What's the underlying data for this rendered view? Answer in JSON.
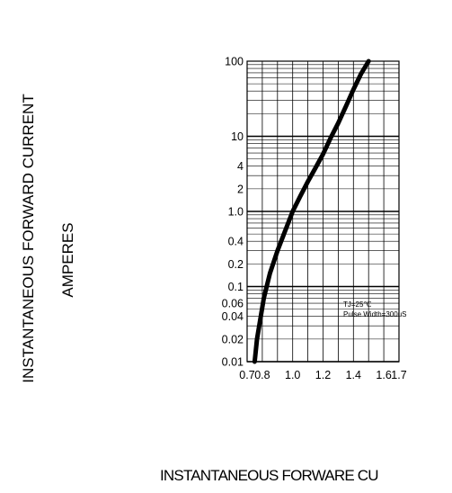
{
  "chart_data": {
    "type": "line",
    "xlabel": "INSTANTANEOUS FORWARE CU",
    "ylabel": "INSTANTANEOUS FORWARD CURRENT",
    "ylabel_unit": "AMPERES",
    "x_scale": "linear",
    "y_scale": "log",
    "xlim": [
      0.7,
      1.7
    ],
    "ylim": [
      0.01,
      100
    ],
    "x_ticks": [
      "0.7",
      "0.8",
      "1.0",
      "1.2",
      "1.4",
      "1.6",
      "1.7"
    ],
    "y_ticks": [
      "100",
      "10",
      "4",
      "2",
      "1.0",
      "0.4",
      "0.2",
      "0.1",
      "0.06",
      "0.04",
      "0.02",
      "0.01"
    ],
    "grid": true,
    "annotation": [
      "TJ=25℃",
      "Pulse Width=300uS"
    ],
    "series": [
      {
        "x": [
          0.75,
          0.765,
          0.785,
          0.81,
          0.85,
          0.9,
          0.95,
          1.0,
          1.05,
          1.1,
          1.15,
          1.2,
          1.25,
          1.3,
          1.35,
          1.4,
          1.45,
          1.5
        ],
        "y": [
          0.01,
          0.02,
          0.035,
          0.07,
          0.15,
          0.3,
          0.55,
          1.0,
          1.6,
          2.5,
          3.8,
          5.8,
          9.5,
          15,
          25,
          42,
          68,
          100
        ]
      }
    ]
  }
}
